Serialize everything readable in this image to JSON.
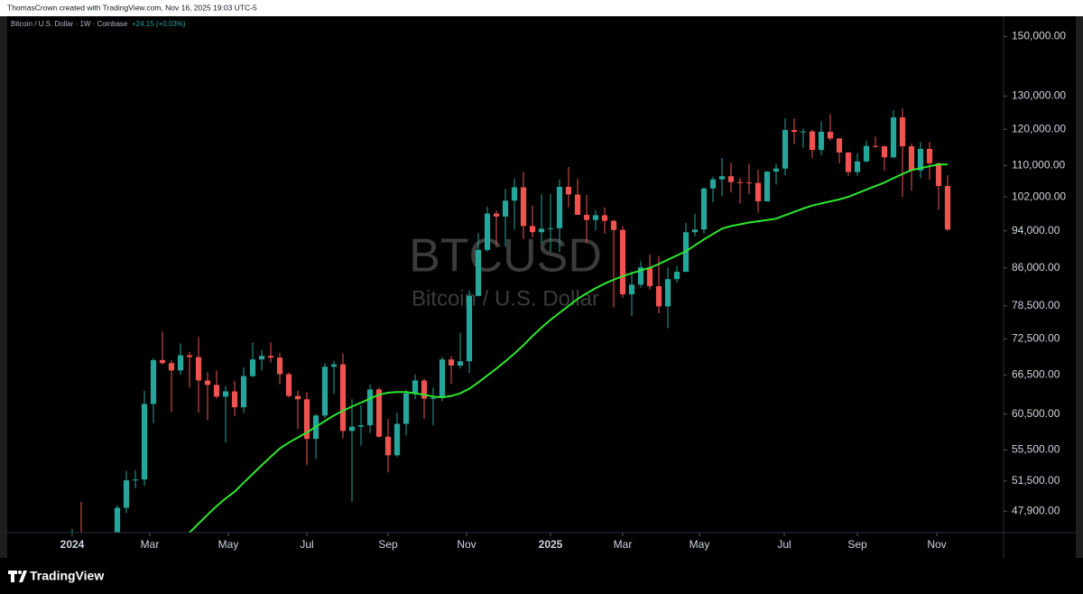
{
  "header": {
    "credit": "ThomasCrown created with TradingView.com, Nov 16, 2025 19:03 UTC-5"
  },
  "legend": {
    "symbol": "Bitcoin / U.S. Dollar · 1W · Coinbase",
    "change": "+24.15 (+0.03%)"
  },
  "watermark": {
    "ticker": "BTCUSD",
    "name": "Bitcoin / U.S. Dollar"
  },
  "footer": {
    "brand": "TradingView"
  },
  "chart_data": {
    "type": "candlestick",
    "log_scale": true,
    "up_color": "#26a69a",
    "down_color": "#ef5350",
    "x": [
      0,
      1,
      2,
      3,
      4,
      5,
      6,
      7,
      8,
      9,
      10,
      11,
      12,
      13,
      14,
      15,
      16,
      17,
      18,
      19,
      20,
      21,
      22,
      23,
      24,
      25,
      26,
      27,
      28,
      29,
      30,
      31,
      32,
      33,
      34,
      35,
      36,
      37,
      38,
      39,
      40,
      41,
      42,
      43,
      44,
      45,
      46,
      47,
      48,
      49,
      50,
      51,
      52,
      53,
      54,
      55,
      56,
      57,
      58,
      59,
      60,
      61,
      62,
      63,
      64,
      65,
      66,
      67,
      68,
      69,
      70,
      71,
      72,
      73,
      74,
      75,
      76,
      77,
      78,
      79,
      80,
      81,
      82,
      83,
      84,
      85,
      86,
      87,
      88,
      89,
      90,
      91,
      92,
      93,
      94,
      95,
      96,
      97
    ],
    "open": [
      42300,
      43900,
      41700,
      41600,
      42000,
      42600,
      48300,
      51600,
      51700,
      62000,
      68900,
      68400,
      67200,
      69700,
      69400,
      65600,
      64900,
      63100,
      63900,
      61500,
      66300,
      69000,
      69600,
      69300,
      66600,
      63200,
      62700,
      57000,
      60300,
      67800,
      68200,
      58100,
      58700,
      58900,
      64200,
      57300,
      54800,
      59100,
      63600,
      65600,
      62800,
      62900,
      69000,
      68000,
      68700,
      80400,
      89800,
      98000,
      97300,
      101100,
      104400,
      95100,
      93700,
      94500,
      94600,
      104500,
      102600,
      97700,
      96500,
      97600,
      96300,
      94200,
      80700,
      82600,
      86100,
      82300,
      78400,
      83700,
      85200,
      93700,
      94300,
      104100,
      106400,
      107200,
      105700,
      105600,
      105500,
      100900,
      108400,
      109200,
      119800,
      119300,
      119400,
      114200,
      119300,
      117400,
      113500,
      108300,
      111100,
      115300,
      115200,
      112200,
      123500,
      115200,
      108700,
      114500,
      110600,
      104700
    ],
    "high": [
      45900,
      49000,
      43600,
      42200,
      43900,
      48600,
      52800,
      52900,
      64000,
      69200,
      73800,
      68900,
      71700,
      70300,
      72800,
      66900,
      67200,
      64700,
      65500,
      67700,
      71900,
      70600,
      71900,
      70100,
      66900,
      64000,
      63800,
      60500,
      68400,
      68800,
      70000,
      62700,
      61800,
      65000,
      64500,
      59800,
      60700,
      64100,
      66500,
      65900,
      64500,
      69400,
      69500,
      73600,
      81500,
      93500,
      99600,
      98700,
      104000,
      106600,
      108300,
      99900,
      102700,
      102700,
      106400,
      109600,
      106500,
      102500,
      98800,
      99500,
      96500,
      95000,
      85300,
      87400,
      88800,
      88500,
      86100,
      86400,
      95800,
      97900,
      104300,
      107100,
      112000,
      110700,
      106800,
      110500,
      108900,
      108500,
      110500,
      123200,
      123200,
      120200,
      119800,
      122300,
      124500,
      117600,
      113600,
      113400,
      116800,
      117900,
      115400,
      125700,
      126200,
      116000,
      116400,
      116400,
      110800,
      107500
    ],
    "low": [
      40800,
      41500,
      40300,
      38500,
      41900,
      42300,
      47700,
      50600,
      50900,
      59200,
      68100,
      60800,
      66500,
      64500,
      60700,
      59600,
      62800,
      56500,
      60200,
      60700,
      66100,
      67200,
      68500,
      65000,
      63000,
      58400,
      53500,
      54300,
      59900,
      63500,
      57100,
      49000,
      56100,
      57800,
      57200,
      52600,
      54600,
      57500,
      62700,
      59800,
      58900,
      62400,
      65100,
      67500,
      66800,
      80300,
      89400,
      90800,
      90500,
      94300,
      92200,
      92500,
      91200,
      89300,
      89300,
      99500,
      97700,
      91200,
      94100,
      93400,
      78200,
      80000,
      76600,
      82000,
      81600,
      77100,
      74400,
      83000,
      85100,
      92800,
      93400,
      100700,
      102200,
      103100,
      100400,
      102700,
      98200,
      100900,
      105100,
      107400,
      115800,
      114800,
      112000,
      112700,
      116800,
      110600,
      107300,
      107300,
      110800,
      114800,
      108600,
      111900,
      102000,
      103500,
      106700,
      106300,
      98900,
      94000
    ],
    "close": [
      43900,
      41700,
      41600,
      42000,
      42600,
      48300,
      51600,
      51700,
      62000,
      68900,
      68400,
      67200,
      69700,
      69400,
      65600,
      64900,
      63100,
      63900,
      61500,
      66300,
      69000,
      69600,
      69300,
      66600,
      63200,
      62700,
      57000,
      60300,
      67800,
      68200,
      58100,
      58700,
      58900,
      64200,
      57300,
      54800,
      59100,
      63600,
      65600,
      62800,
      62900,
      69000,
      68000,
      68700,
      80400,
      89800,
      98000,
      97300,
      101100,
      104400,
      95100,
      93700,
      94500,
      94600,
      104500,
      102600,
      97700,
      96500,
      97600,
      96300,
      94200,
      80700,
      82600,
      86100,
      82300,
      78400,
      83700,
      85200,
      93700,
      94300,
      104100,
      106400,
      107200,
      105700,
      105600,
      105500,
      100900,
      108400,
      109200,
      119800,
      119300,
      119400,
      114200,
      119300,
      117400,
      113500,
      108300,
      111100,
      115300,
      115200,
      112200,
      123500,
      115200,
      108700,
      114500,
      110600,
      104700,
      94300
    ],
    "moving_average": {
      "color": "#2ee62e",
      "values": [
        null,
        null,
        null,
        null,
        null,
        null,
        null,
        null,
        null,
        null,
        null,
        null,
        44800,
        45500,
        46500,
        47500,
        48500,
        49400,
        50200,
        51300,
        52400,
        53500,
        54600,
        55700,
        56500,
        57200,
        57900,
        58700,
        59500,
        60300,
        61000,
        61600,
        62200,
        62800,
        63400,
        63700,
        63800,
        63800,
        63600,
        63400,
        63100,
        63000,
        63200,
        63600,
        64300,
        65300,
        66400,
        67500,
        68700,
        70000,
        71400,
        73000,
        74500,
        75900,
        77200,
        78500,
        79800,
        80900,
        81900,
        82800,
        83600,
        84300,
        84900,
        85500,
        86000,
        86800,
        87700,
        88600,
        89500,
        90800,
        92100,
        93300,
        94500,
        95100,
        95500,
        95900,
        96200,
        96500,
        96800,
        97600,
        98400,
        99200,
        99900,
        100400,
        100900,
        101400,
        102000,
        102900,
        103800,
        104700,
        105600,
        106700,
        107800,
        108800,
        109300,
        109800,
        110300,
        110300
      ]
    },
    "ylim": [
      45500,
      157500
    ],
    "yticks": [
      {
        "value": 47900,
        "label": "47,900.00"
      },
      {
        "value": 51500,
        "label": "51,500.00"
      },
      {
        "value": 55500,
        "label": "55,500.00"
      },
      {
        "value": 60500,
        "label": "60,500.00"
      },
      {
        "value": 66500,
        "label": "66,500.00"
      },
      {
        "value": 72500,
        "label": "72,500.00"
      },
      {
        "value": 78500,
        "label": "78,500.00"
      },
      {
        "value": 86000,
        "label": "86,000.00"
      },
      {
        "value": 94000,
        "label": "94,000.00"
      },
      {
        "value": 102000,
        "label": "102,000.00"
      },
      {
        "value": 110000,
        "label": "110,000.00"
      },
      {
        "value": 120000,
        "label": "120,000.00"
      },
      {
        "value": 130000,
        "label": "130,000.00"
      },
      {
        "value": 150000,
        "label": "150,000.00"
      }
    ],
    "xlim": [
      -7.2,
      103.2
    ],
    "xticks": [
      {
        "value": 0,
        "label": "2024"
      },
      {
        "value": 8.6,
        "label": "Mar"
      },
      {
        "value": 17.3,
        "label": "May"
      },
      {
        "value": 26,
        "label": "Jul"
      },
      {
        "value": 35,
        "label": "Sep"
      },
      {
        "value": 43.7,
        "label": "Nov"
      },
      {
        "value": 53,
        "label": "2025"
      },
      {
        "value": 61,
        "label": "Mar"
      },
      {
        "value": 69.5,
        "label": "May"
      },
      {
        "value": 78.9,
        "label": "Jul"
      },
      {
        "value": 87,
        "label": "Sep"
      },
      {
        "value": 95.8,
        "label": "Nov"
      }
    ]
  }
}
